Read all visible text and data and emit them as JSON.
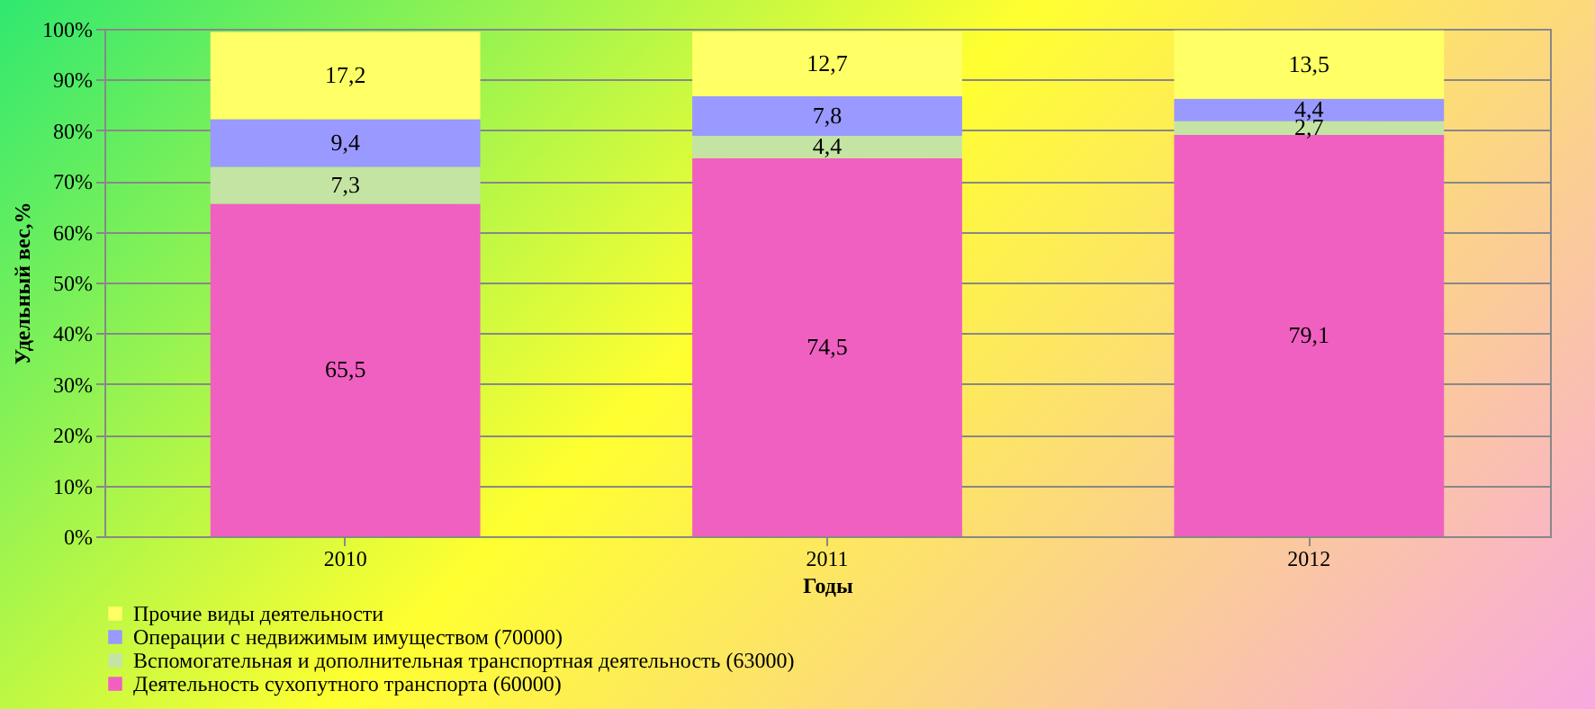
{
  "chart_data": {
    "type": "bar",
    "stacked": true,
    "xlabel": "Годы",
    "ylabel": "Удельный вес,%",
    "categories": [
      "2010",
      "2011",
      "2012"
    ],
    "series": [
      {
        "name": "Деятельность сухопутного транспорта (60000)",
        "color": "#f060c0",
        "values": [
          65.5,
          74.5,
          79.1
        ],
        "value_labels": [
          "65,5",
          "74,5",
          "79,1"
        ]
      },
      {
        "name": "Вспомогательная и дополнительная транспортная деятельность (63000)",
        "color": "#c4e4a4",
        "values": [
          7.3,
          4.4,
          2.7
        ],
        "value_labels": [
          "7,3",
          "4,4",
          "2,7"
        ]
      },
      {
        "name": "Операции с недвижимым имуществом (70000)",
        "color": "#9999ff",
        "values": [
          9.4,
          7.8,
          4.4
        ],
        "value_labels": [
          "9,4",
          "7,8",
          "4,4"
        ]
      },
      {
        "name": "Прочие виды деятельности",
        "color": "#ffff66",
        "values": [
          17.2,
          12.7,
          13.5
        ],
        "value_labels": [
          "17,2",
          "12,7",
          "13,5"
        ]
      }
    ],
    "ylim": [
      0,
      100
    ],
    "yticks": [
      {
        "value": 0,
        "label": "0%"
      },
      {
        "value": 10,
        "label": "10%"
      },
      {
        "value": 20,
        "label": "20%"
      },
      {
        "value": 30,
        "label": "30%"
      },
      {
        "value": 40,
        "label": "40%"
      },
      {
        "value": 50,
        "label": "50%"
      },
      {
        "value": 60,
        "label": "60%"
      },
      {
        "value": 70,
        "label": "70%"
      },
      {
        "value": 80,
        "label": "80%"
      },
      {
        "value": 90,
        "label": "90%"
      },
      {
        "value": 100,
        "label": "100%"
      }
    ],
    "grid": "y",
    "legend": "bottom"
  }
}
